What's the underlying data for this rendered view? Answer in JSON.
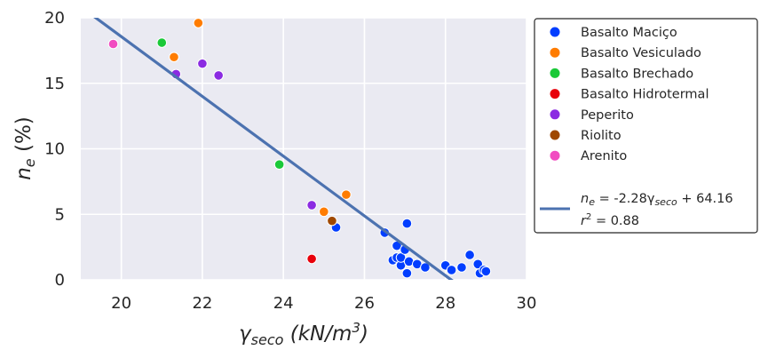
{
  "chart_data": {
    "type": "scatter",
    "xlabel_main": "γ",
    "xlabel_sub": "seco",
    "xlabel_unit_open": " (kN/m",
    "xlabel_unit_sup": "3",
    "xlabel_unit_close": ")",
    "ylabel_main": "n",
    "ylabel_sub": "e",
    "ylabel_unit": " (%)",
    "xlim": [
      19,
      30
    ],
    "ylim": [
      0,
      20
    ],
    "x_ticks": [
      "20",
      "22",
      "24",
      "26",
      "28",
      "30"
    ],
    "y_ticks": [
      "0",
      "5",
      "10",
      "15",
      "20"
    ],
    "grid": true,
    "legend_placement": "outside-right",
    "series": [
      {
        "name": "Basalto Maciço",
        "color": "#023eff",
        "points": [
          [
            25.3,
            4.0
          ],
          [
            26.5,
            3.6
          ],
          [
            26.7,
            1.5
          ],
          [
            26.8,
            1.7
          ],
          [
            26.8,
            2.6
          ],
          [
            26.9,
            1.1
          ],
          [
            26.9,
            1.7
          ],
          [
            27.0,
            2.3
          ],
          [
            27.05,
            0.5
          ],
          [
            27.1,
            1.4
          ],
          [
            27.05,
            4.3
          ],
          [
            27.3,
            1.2
          ],
          [
            27.5,
            0.95
          ],
          [
            28.0,
            1.1
          ],
          [
            28.15,
            0.75
          ],
          [
            28.4,
            0.95
          ],
          [
            28.6,
            1.9
          ],
          [
            28.8,
            1.2
          ],
          [
            28.85,
            0.5
          ],
          [
            28.95,
            0.75
          ],
          [
            29.0,
            0.65
          ]
        ]
      },
      {
        "name": "Basalto Vesiculado",
        "color": "#ff7c00",
        "points": [
          [
            21.9,
            19.6
          ],
          [
            21.3,
            17.0
          ],
          [
            25.0,
            5.2
          ],
          [
            25.55,
            6.5
          ]
        ]
      },
      {
        "name": "Basalto Brechado",
        "color": "#1ac938",
        "points": [
          [
            21.0,
            18.1
          ],
          [
            23.9,
            8.8
          ]
        ]
      },
      {
        "name": "Basalto Hidrotermal",
        "color": "#e8000b",
        "points": [
          [
            24.7,
            1.6
          ]
        ]
      },
      {
        "name": "Peperito",
        "color": "#8b2be2",
        "points": [
          [
            21.35,
            15.7
          ],
          [
            22.0,
            16.5
          ],
          [
            22.4,
            15.6
          ],
          [
            24.7,
            5.7
          ]
        ]
      },
      {
        "name": "Riolito",
        "color": "#9f4800",
        "points": [
          [
            25.2,
            4.5
          ]
        ]
      },
      {
        "name": "Arenito",
        "color": "#f14cc1",
        "points": [
          [
            19.8,
            18.0
          ]
        ]
      }
    ],
    "fit": {
      "slope": -2.28,
      "intercept": 64.16,
      "color": "#4c72b0",
      "legend_line1_a": "n",
      "legend_line1_b": "e",
      "legend_line1_c": " = -2.28γ",
      "legend_line1_d": "seco",
      "legend_line1_e": " + 64.16",
      "legend_line2_a": "r",
      "legend_line2_b": "2",
      "legend_line2_c": " = 0.88"
    }
  }
}
